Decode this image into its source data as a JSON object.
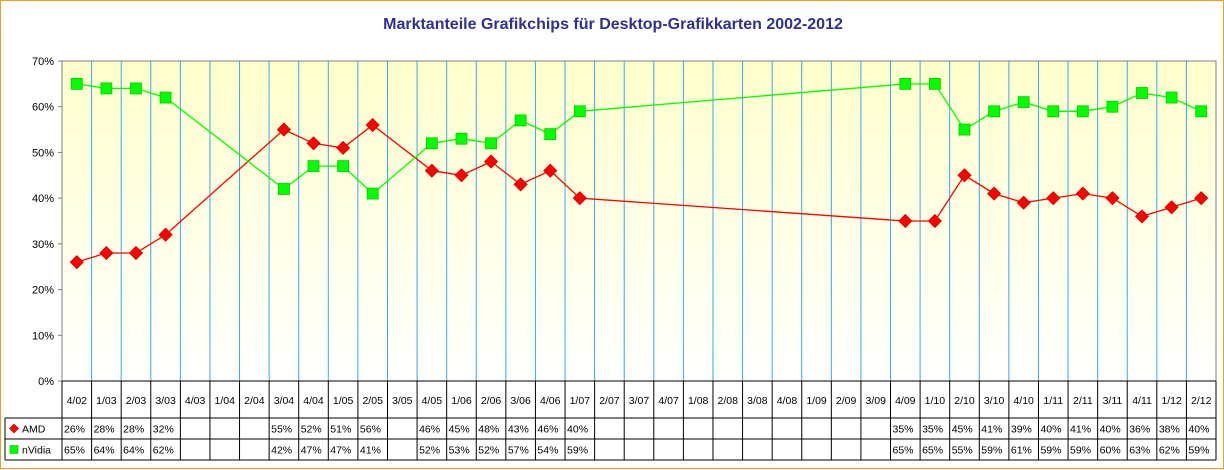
{
  "chart_data": {
    "type": "line",
    "title": "Marktanteile Grafikchips für Desktop-Grafikkarten 2002-2012",
    "xlabel": "",
    "ylabel": "",
    "ylim": [
      0,
      70
    ],
    "y_ticks": [
      "0%",
      "10%",
      "20%",
      "30%",
      "40%",
      "50%",
      "60%",
      "70%"
    ],
    "grid": true,
    "legend": "in data table",
    "categories": [
      "4/02",
      "1/03",
      "2/03",
      "3/03",
      "4/03",
      "1/04",
      "2/04",
      "3/04",
      "4/04",
      "1/05",
      "2/05",
      "3/05",
      "4/05",
      "1/06",
      "2/06",
      "3/06",
      "4/06",
      "1/07",
      "2/07",
      "3/07",
      "4/07",
      "1/08",
      "2/08",
      "3/08",
      "4/08",
      "1/09",
      "2/09",
      "3/09",
      "4/09",
      "1/10",
      "2/10",
      "3/10",
      "4/10",
      "1/11",
      "2/11",
      "3/11",
      "4/11",
      "1/12",
      "2/12"
    ],
    "series": [
      {
        "name": "AMD",
        "color": "#ff0000",
        "marker": "diamond",
        "values": [
          26,
          28,
          28,
          32,
          null,
          null,
          null,
          55,
          52,
          51,
          56,
          null,
          46,
          45,
          48,
          43,
          46,
          40,
          null,
          null,
          null,
          null,
          null,
          null,
          null,
          null,
          null,
          null,
          35,
          35,
          45,
          41,
          39,
          40,
          41,
          40,
          36,
          38,
          40
        ],
        "labels": [
          "26%",
          "28%",
          "28%",
          "32%",
          "",
          "",
          "",
          "55%",
          "52%",
          "51%",
          "56%",
          "",
          "46%",
          "45%",
          "48%",
          "43%",
          "46%",
          "40%",
          "",
          "",
          "",
          "",
          "",
          "",
          "",
          "",
          "",
          "",
          "35%",
          "35%",
          "45%",
          "41%",
          "39%",
          "40%",
          "41%",
          "40%",
          "36%",
          "38%",
          "40%"
        ]
      },
      {
        "name": "nVidia",
        "color": "#00ff00",
        "marker": "square",
        "values": [
          65,
          64,
          64,
          62,
          null,
          null,
          null,
          42,
          47,
          47,
          41,
          null,
          52,
          53,
          52,
          57,
          54,
          59,
          null,
          null,
          null,
          null,
          null,
          null,
          null,
          null,
          null,
          null,
          65,
          65,
          55,
          59,
          61,
          59,
          59,
          60,
          63,
          62,
          59
        ],
        "labels": [
          "65%",
          "64%",
          "64%",
          "62%",
          "",
          "",
          "",
          "42%",
          "47%",
          "47%",
          "41%",
          "",
          "52%",
          "53%",
          "52%",
          "57%",
          "54%",
          "59%",
          "",
          "",
          "",
          "",
          "",
          "",
          "",
          "",
          "",
          "",
          "65%",
          "65%",
          "55%",
          "59%",
          "61%",
          "59%",
          "59%",
          "60%",
          "63%",
          "62%",
          "59%"
        ]
      }
    ]
  }
}
